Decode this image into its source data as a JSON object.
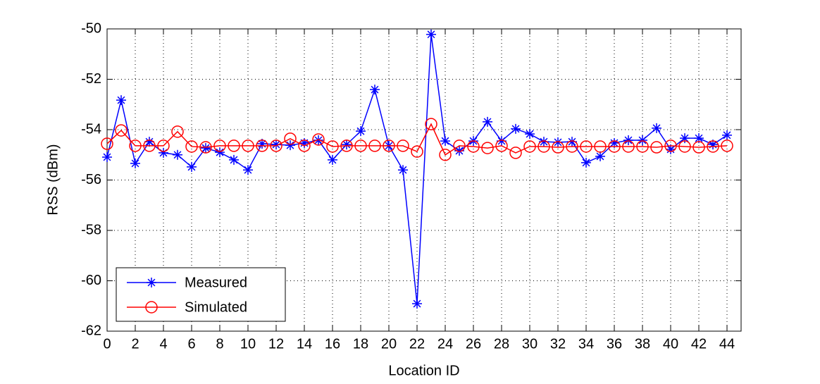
{
  "chart_data": {
    "type": "line",
    "x_label": "Location ID",
    "y_label": "RSS (dBm)",
    "x": [
      0,
      1,
      2,
      3,
      4,
      5,
      6,
      7,
      8,
      9,
      10,
      11,
      12,
      13,
      14,
      15,
      16,
      17,
      18,
      19,
      20,
      21,
      22,
      23,
      24,
      25,
      26,
      27,
      28,
      29,
      30,
      31,
      32,
      33,
      34,
      35,
      36,
      37,
      38,
      39,
      40,
      41,
      42,
      43,
      44
    ],
    "series": [
      {
        "name": "Measured",
        "color": "#0000ff",
        "marker": "asterisk",
        "values": [
          -55.09,
          -52.83,
          -55.34,
          -54.48,
          -54.92,
          -55.0,
          -55.48,
          -54.73,
          -54.9,
          -55.2,
          -55.6,
          -54.56,
          -54.59,
          -54.62,
          -54.53,
          -54.42,
          -55.2,
          -54.59,
          -54.06,
          -52.41,
          -54.64,
          -55.6,
          -60.91,
          -50.22,
          -54.45,
          -54.84,
          -54.45,
          -53.69,
          -54.45,
          -53.97,
          -54.17,
          -54.48,
          -54.5,
          -54.48,
          -55.31,
          -55.06,
          -54.53,
          -54.42,
          -54.42,
          -53.94,
          -54.78,
          -54.34,
          -54.34,
          -54.59,
          -54.22
        ]
      },
      {
        "name": "Simulated",
        "color": "#ff0000",
        "marker": "circle",
        "values": [
          -54.56,
          -54.03,
          -54.64,
          -54.64,
          -54.64,
          -54.08,
          -54.67,
          -54.7,
          -54.64,
          -54.64,
          -54.64,
          -54.64,
          -54.64,
          -54.36,
          -54.64,
          -54.39,
          -54.67,
          -54.64,
          -54.64,
          -54.64,
          -54.64,
          -54.64,
          -54.87,
          -53.78,
          -55.0,
          -54.64,
          -54.67,
          -54.73,
          -54.64,
          -54.92,
          -54.67,
          -54.67,
          -54.7,
          -54.67,
          -54.67,
          -54.67,
          -54.67,
          -54.67,
          -54.67,
          -54.7,
          -54.64,
          -54.67,
          -54.7,
          -54.67,
          -54.64
        ]
      }
    ],
    "xlim": [
      0,
      45
    ],
    "xticks": [
      0,
      2,
      4,
      6,
      8,
      10,
      12,
      14,
      16,
      18,
      20,
      22,
      24,
      26,
      28,
      30,
      32,
      34,
      36,
      38,
      40,
      42,
      44
    ],
    "ylim": [
      -62,
      -50
    ],
    "yticks": [
      -62,
      -60,
      -58,
      -56,
      -54,
      -52,
      -50
    ],
    "grid": true,
    "legend": "lower left"
  }
}
